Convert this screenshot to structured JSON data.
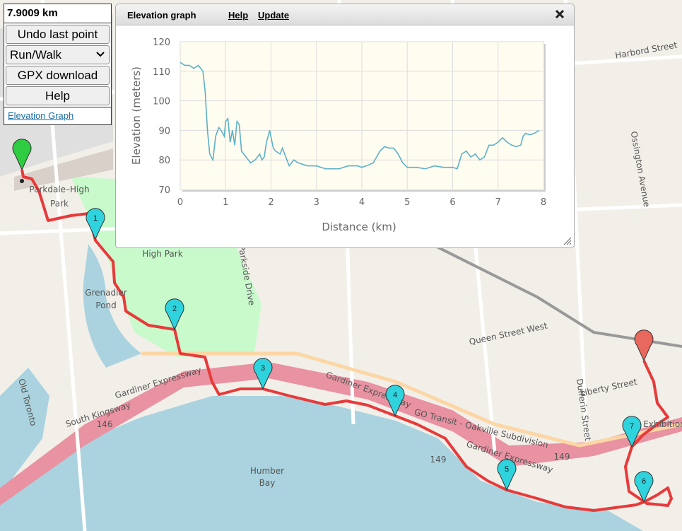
{
  "controls": {
    "distance": "7.9009 km",
    "undo": "Undo last point",
    "mode": "Run/Walk",
    "gpx": "GPX download",
    "help": "Help",
    "elevation_link": "Elevation Graph"
  },
  "panel": {
    "title": "Elevation graph",
    "help": "Help",
    "update": "Update"
  },
  "map": {
    "labels": [
      "Parkdale–High",
      "Park",
      "High Park",
      "Grenadier",
      "Pond",
      "Parkside Drive",
      "Queen Street West",
      "Gardiner Expressway",
      "Gardiner Expressway",
      "Gardiner Expressway",
      "South Kingsway",
      "146",
      "149",
      "149",
      "Humber",
      "Bay",
      "GO Transit - Oakville Subdivision",
      "Liberty Street",
      "Dufferin Street",
      "Ossington Avenue",
      "Harbord Street",
      "Old Toronto",
      "Exhibition"
    ],
    "markers": [
      "1",
      "2",
      "3",
      "4",
      "5",
      "6",
      "7"
    ]
  },
  "chart_data": {
    "type": "line",
    "x_label": "Distance (km)",
    "y_label": "Elevation (meters)",
    "color": "#5cb1c8",
    "x": [
      0,
      0.1,
      0.2,
      0.3,
      0.4,
      0.5,
      0.55,
      0.6,
      0.65,
      0.72,
      0.78,
      0.85,
      0.9,
      0.97,
      1.0,
      1.05,
      1.1,
      1.15,
      1.2,
      1.25,
      1.3,
      1.35,
      1.45,
      1.55,
      1.65,
      1.75,
      1.8,
      1.85,
      1.9,
      1.97,
      2.05,
      2.1,
      2.2,
      2.25,
      2.3,
      2.35,
      2.4,
      2.5,
      2.6,
      2.8,
      3.0,
      3.2,
      3.5,
      3.7,
      3.9,
      4.0,
      4.1,
      4.25,
      4.4,
      4.5,
      4.6,
      4.7,
      4.8,
      4.9,
      5.0,
      5.2,
      5.4,
      5.6,
      5.8,
      6.0,
      6.1,
      6.2,
      6.3,
      6.4,
      6.5,
      6.6,
      6.7,
      6.8,
      6.9,
      7.0,
      7.1,
      7.2,
      7.3,
      7.4,
      7.5,
      7.55,
      7.6,
      7.7,
      7.8,
      7.9
    ],
    "values": [
      113,
      112,
      112,
      111,
      112,
      110,
      103,
      90,
      82,
      80,
      88,
      91,
      90,
      88,
      93,
      94,
      86,
      90,
      85,
      93,
      92,
      83,
      81,
      79,
      80,
      82,
      80,
      81,
      86,
      90,
      84,
      83,
      82,
      84,
      82,
      80,
      78,
      80,
      79,
      78,
      78,
      77,
      77,
      78,
      78,
      77.5,
      78,
      79,
      83,
      84.5,
      84,
      84,
      82,
      79,
      77.5,
      77.5,
      77,
      78,
      77.5,
      77.5,
      77,
      82,
      83,
      81,
      82,
      80,
      81,
      85,
      85,
      86,
      87.5,
      86,
      85,
      84.5,
      85,
      88,
      89,
      88.5,
      89,
      90
    ],
    "xlim": [
      0,
      8
    ],
    "ylim": [
      70,
      120
    ],
    "xticks": [
      0,
      1,
      2,
      3,
      4,
      5,
      6,
      7,
      8
    ],
    "yticks": [
      70,
      80,
      90,
      100,
      110,
      120
    ],
    "grid": true
  }
}
